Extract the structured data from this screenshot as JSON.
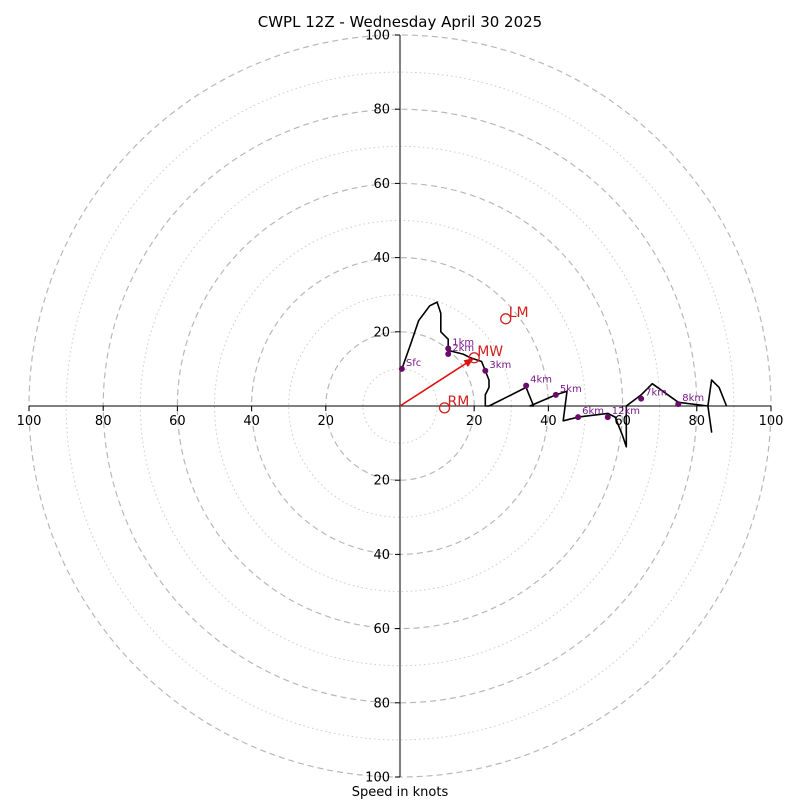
{
  "chart_data": {
    "type": "hodograph",
    "title": "CWPL 12Z - Wednesday April 30 2025",
    "xlabel": "Speed in knots",
    "range": [
      -100,
      100
    ],
    "ring_step_major": 20,
    "ring_step_minor": 10,
    "ticks": {
      "x": [
        "100",
        "80",
        "60",
        "40",
        "20",
        "20",
        "40",
        "60",
        "80",
        "100"
      ],
      "y": [
        "100",
        "80",
        "60",
        "40",
        "20",
        "20",
        "40",
        "60",
        "80",
        "100"
      ]
    },
    "tick_values": [
      -100,
      -80,
      -60,
      -40,
      -20,
      20,
      40,
      60,
      80,
      100
    ],
    "wind_trace": [
      [
        0.5,
        10
      ],
      [
        3,
        17
      ],
      [
        5,
        23
      ],
      [
        8,
        27
      ],
      [
        10,
        28
      ],
      [
        11,
        25
      ],
      [
        11,
        20
      ],
      [
        13,
        18
      ],
      [
        13,
        15
      ],
      [
        17,
        14
      ],
      [
        19,
        13
      ],
      [
        22,
        12
      ],
      [
        24,
        7
      ],
      [
        24,
        5
      ],
      [
        23,
        3
      ],
      [
        23,
        0
      ],
      [
        24,
        0
      ],
      [
        34,
        5
      ],
      [
        36,
        0
      ],
      [
        35,
        0
      ],
      [
        42,
        3
      ],
      [
        45,
        4
      ],
      [
        44,
        -4
      ],
      [
        48,
        -3
      ],
      [
        56,
        -2
      ],
      [
        58,
        -3
      ],
      [
        60,
        -8
      ],
      [
        61,
        -11
      ],
      [
        61,
        -5
      ],
      [
        61,
        -3
      ],
      [
        61,
        0
      ],
      [
        65,
        3
      ],
      [
        68,
        6
      ],
      [
        75,
        1
      ],
      [
        83,
        0
      ],
      [
        84,
        -7
      ],
      [
        83,
        0
      ],
      [
        84,
        7
      ],
      [
        86,
        5
      ],
      [
        88,
        0
      ]
    ],
    "height_labels": [
      {
        "label": "Sfc",
        "u": 0.5,
        "v": 10
      },
      {
        "label": "1km",
        "u": 13,
        "v": 15.5
      },
      {
        "label": "2km",
        "u": 13,
        "v": 14
      },
      {
        "label": "3km",
        "u": 23,
        "v": 9.5
      },
      {
        "label": "4km",
        "u": 34,
        "v": 5.5
      },
      {
        "label": "5km",
        "u": 42,
        "v": 3
      },
      {
        "label": "6km",
        "u": 48,
        "v": -3
      },
      {
        "label": "7km",
        "u": 65,
        "v": 2
      },
      {
        "label": "8km",
        "u": 75,
        "v": 0.5
      },
      {
        "label": "12km",
        "u": 56,
        "v": -3
      }
    ],
    "storm_motion": {
      "MW": {
        "label": "MW",
        "u": 20,
        "v": 13
      },
      "LM": {
        "label": "LM",
        "u": 28.5,
        "v": 23.5
      },
      "RM": {
        "label": "RM",
        "u": 12,
        "v": -0.5
      }
    },
    "colors": {
      "trace": "#000000",
      "height_points": "#6b0a6b",
      "height_text": "#7a1a8a",
      "storm": "#d42020",
      "arrow": "#e01010",
      "ring_major": "#b8b8b8",
      "ring_minor": "#cccccc",
      "axis": "#000000"
    }
  }
}
